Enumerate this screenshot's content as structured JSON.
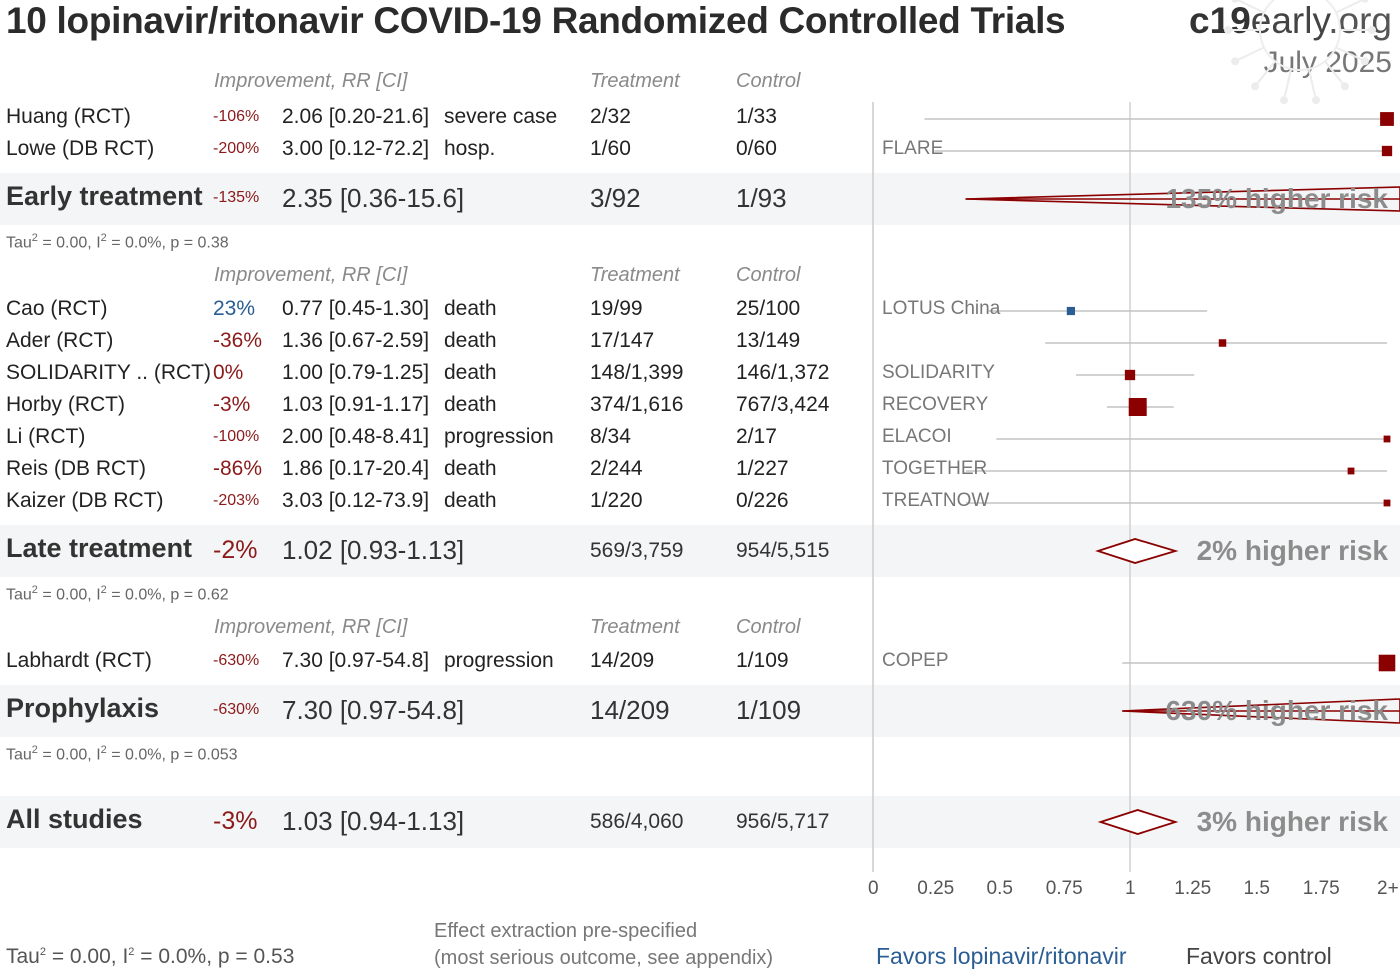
{
  "title": "10 lopinavir/ritonavir COVID-19 Randomized Controlled Trials",
  "brand": {
    "c19": "c19",
    "early": "early",
    "org": ".org"
  },
  "date": "July 2025",
  "headers": {
    "improvement": "Improvement, RR [CI]",
    "treatment": "Treatment",
    "control": "Control"
  },
  "groups": [
    {
      "name": "Early treatment",
      "improvement": "-135%",
      "rr_text": "2.35 [0.36-15.6]",
      "treatment": "3/92",
      "control": "1/93",
      "rr": 2.35,
      "lo": 0.36,
      "hi": 15.6,
      "risk_label": "135% higher risk",
      "tau": {
        "t": "Tau",
        "rest": " = 0.00, I",
        "rest2": " = 0.0%, p = 0.38"
      },
      "studies": [
        {
          "name": "Huang (RCT)",
          "improvement": "-106%",
          "rr_text": "2.06 [0.20-21.6]",
          "outcome": "severe case",
          "treatment": "2/32",
          "control": "1/33",
          "trial": "",
          "rr": 2.06,
          "lo": 0.2,
          "hi": 21.6,
          "weight": 1.4
        },
        {
          "name": "Lowe (DB RCT)",
          "improvement": "-200%",
          "rr_text": "3.00 [0.12-72.2]",
          "outcome": "hosp.",
          "treatment": "1/60",
          "control": "0/60",
          "trial": "FLARE",
          "rr": 3.0,
          "lo": 0.12,
          "hi": 72.2,
          "weight": 0.9
        }
      ]
    },
    {
      "name": "Late treatment",
      "improvement": "-2%",
      "rr_text": "1.02 [0.93-1.13]",
      "treatment": "569/3,759",
      "control": "954/5,515",
      "rr": 1.02,
      "lo": 0.93,
      "hi": 1.13,
      "risk_label": "2% higher risk",
      "tau": {
        "t": "Tau",
        "rest": " = 0.00, I",
        "rest2": " = 0.0%, p = 0.62"
      },
      "studies": [
        {
          "name": "Cao (RCT)",
          "improvement": "23%",
          "rr_text": "0.77 [0.45-1.30]",
          "outcome": "death",
          "treatment": "19/99",
          "control": "25/100",
          "trial": "LOTUS China",
          "rr": 0.77,
          "lo": 0.45,
          "hi": 1.3,
          "weight": 0.6,
          "good": true
        },
        {
          "name": "Ader (RCT)",
          "improvement": "-36%",
          "rr_text": "1.36 [0.67-2.59]",
          "outcome": "death",
          "treatment": "17/147",
          "control": "13/149",
          "trial": "",
          "rr": 1.36,
          "lo": 0.67,
          "hi": 2.59,
          "weight": 0.5
        },
        {
          "name": "SOLIDARITY .. (RCT)",
          "improvement": "0%",
          "rr_text": "1.00 [0.79-1.25]",
          "outcome": "death",
          "treatment": "148/1,399",
          "control": "146/1,372",
          "trial": "SOLIDARITY",
          "rr": 1.0,
          "lo": 0.79,
          "hi": 1.25,
          "weight": 0.9
        },
        {
          "name": "Horby (RCT)",
          "improvement": "-3%",
          "rr_text": "1.03 [0.91-1.17]",
          "outcome": "death",
          "treatment": "374/1,616",
          "control": "767/3,424",
          "trial": "RECOVERY",
          "rr": 1.03,
          "lo": 0.91,
          "hi": 1.17,
          "weight": 2.2
        },
        {
          "name": "Li (RCT)",
          "improvement": "-100%",
          "rr_text": "2.00 [0.48-8.41]",
          "outcome": "progression",
          "treatment": "8/34",
          "control": "2/17",
          "trial": "ELACOI",
          "rr": 2.0,
          "lo": 0.48,
          "hi": 8.41,
          "weight": 0.4
        },
        {
          "name": "Reis (DB RCT)",
          "improvement": "-86%",
          "rr_text": "1.86 [0.17-20.4]",
          "outcome": "death",
          "treatment": "2/244",
          "control": "1/227",
          "trial": "TOGETHER",
          "rr": 1.86,
          "lo": 0.17,
          "hi": 20.4,
          "weight": 0.4
        },
        {
          "name": "Kaizer (DB RCT)",
          "improvement": "-203%",
          "rr_text": "3.03 [0.12-73.9]",
          "outcome": "death",
          "treatment": "1/220",
          "control": "0/226",
          "trial": "TREATNOW",
          "rr": 3.03,
          "lo": 0.12,
          "hi": 73.9,
          "weight": 0.4
        }
      ]
    },
    {
      "name": "Prophylaxis",
      "improvement": "-630%",
      "rr_text": "7.30 [0.97-54.8]",
      "treatment": "14/209",
      "control": "1/109",
      "rr": 7.3,
      "lo": 0.97,
      "hi": 54.8,
      "risk_label": "630% higher risk",
      "tau": {
        "t": "Tau",
        "rest": " = 0.00, I",
        "rest2": " = 0.0%, p = 0.053"
      },
      "studies": [
        {
          "name": "Labhardt (RCT)",
          "improvement": "-630%",
          "rr_text": "7.30 [0.97-54.8]",
          "outcome": "progression",
          "treatment": "14/209",
          "control": "1/109",
          "trial": "COPEP",
          "rr": 7.3,
          "lo": 0.97,
          "hi": 54.8,
          "weight": 1.8
        }
      ]
    }
  ],
  "all": {
    "name": "All studies",
    "improvement": "-3%",
    "rr_text": "1.03 [0.94-1.13]",
    "treatment": "586/4,060",
    "control": "956/5,717",
    "rr": 1.03,
    "lo": 0.94,
    "hi": 1.13,
    "risk_label": "3% higher risk"
  },
  "footer": {
    "tau": {
      "t": "Tau",
      "rest": " = 0.00, I",
      "rest2": " = 0.0%, p = 0.53"
    },
    "note_line1": "Effect extraction pre-specified",
    "note_line2": "(most serious outcome, see appendix)",
    "favors_treatment": "Favors lopinavir/ritonavir",
    "favors_control": "Favors control"
  },
  "chart_data": {
    "type": "forest",
    "x_ticks": [
      "0",
      "0.25",
      "0.5",
      "0.75",
      "1",
      "1.25",
      "1.5",
      "1.75",
      "2+"
    ],
    "xlim": [
      0,
      2
    ],
    "reference_line": 1,
    "colors": {
      "harm": "#8b0000",
      "benefit": "#2a5d93"
    }
  }
}
